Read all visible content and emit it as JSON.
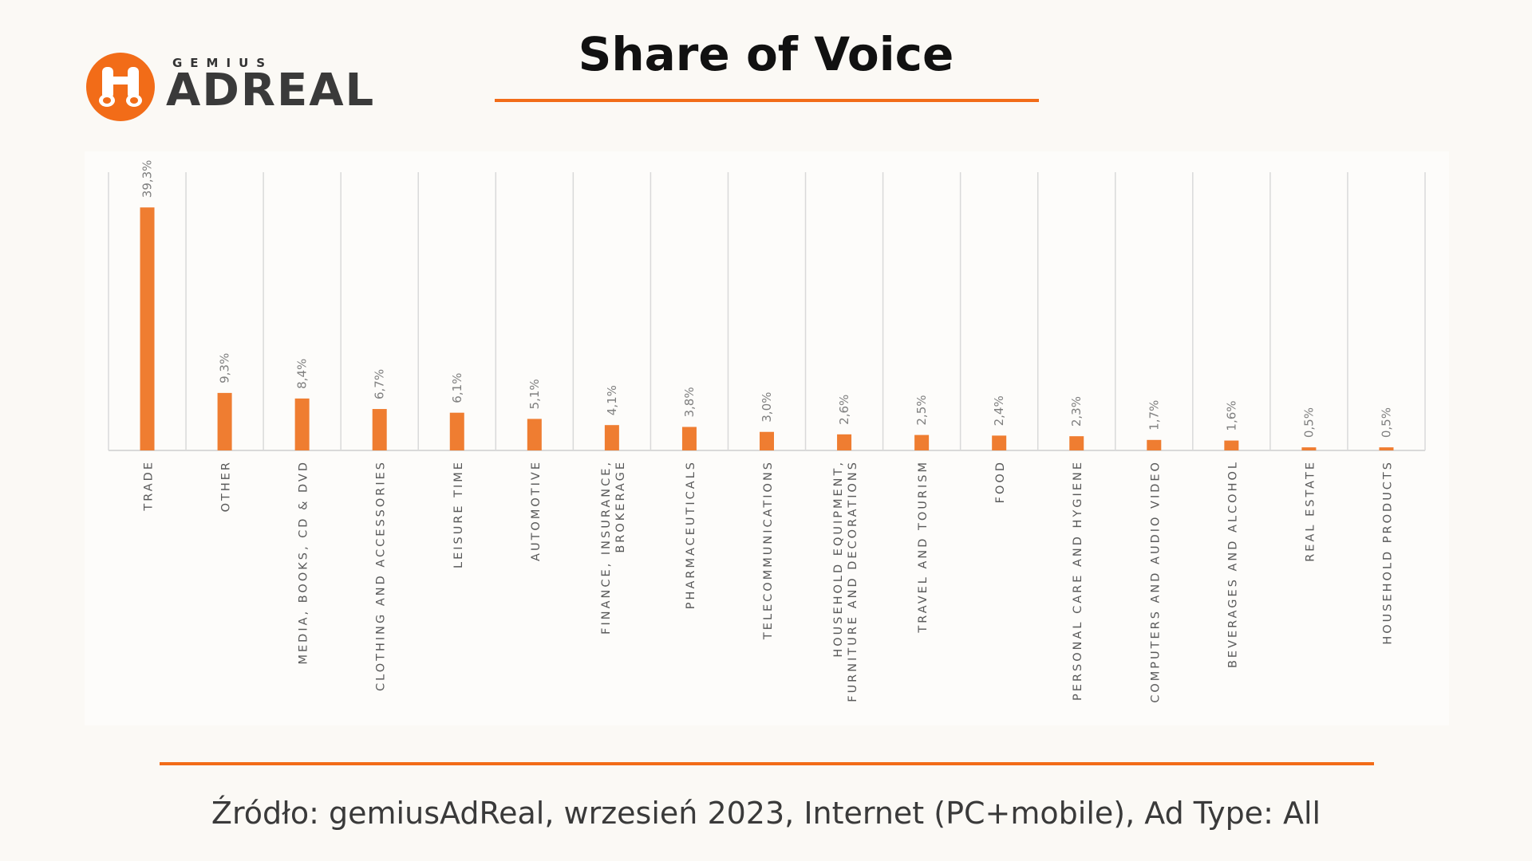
{
  "logo": {
    "small_text": "GEMIUS",
    "big_text": "ADREAL"
  },
  "title": "Share of Voice",
  "source": "Źródło: gemiusAdReal, wrzesień 2023, Internet (PC+mobile), Ad Type: All",
  "colors": {
    "accent": "#f26c18",
    "bar": "#ef7d31",
    "grid": "#d9d9d9",
    "label": "#595959"
  },
  "chart_data": {
    "type": "bar",
    "title": "Share of Voice",
    "categories": [
      [
        "TRADE"
      ],
      [
        "OTHER"
      ],
      [
        "MEDIA, BOOKS, CD & DVD"
      ],
      [
        "CLOTHING AND ACCESSORIES"
      ],
      [
        "LEISURE TIME"
      ],
      [
        "AUTOMOTIVE"
      ],
      [
        "FINANCE, INSURANCE,",
        "BROKERAGE"
      ],
      [
        "PHARMACEUTICALS"
      ],
      [
        "TELECOMMUNICATIONS"
      ],
      [
        "HOUSEHOLD EQUIPMENT,",
        "FURNITURE AND DECORATIONS"
      ],
      [
        "TRAVEL AND TOURISM"
      ],
      [
        "FOOD"
      ],
      [
        "PERSONAL CARE AND HYGIENE"
      ],
      [
        "COMPUTERS AND AUDIO VIDEO"
      ],
      [
        "BEVERAGES AND ALCOHOL"
      ],
      [
        "REAL ESTATE"
      ],
      [
        "HOUSEHOLD PRODUCTS"
      ]
    ],
    "values": [
      39.3,
      9.3,
      8.4,
      6.7,
      6.1,
      5.1,
      4.1,
      3.8,
      3.0,
      2.6,
      2.5,
      2.4,
      2.3,
      1.7,
      1.6,
      0.5,
      0.5
    ],
    "value_labels": [
      "39,3%",
      "9,3%",
      "8,4%",
      "6,7%",
      "6,1%",
      "5,1%",
      "4,1%",
      "3,8%",
      "3,0%",
      "2,6%",
      "2,5%",
      "2,4%",
      "2,3%",
      "1,7%",
      "1,6%",
      "0,5%",
      "0,5%"
    ],
    "ylim": [
      0,
      45
    ],
    "grid": true,
    "legend": "none"
  }
}
